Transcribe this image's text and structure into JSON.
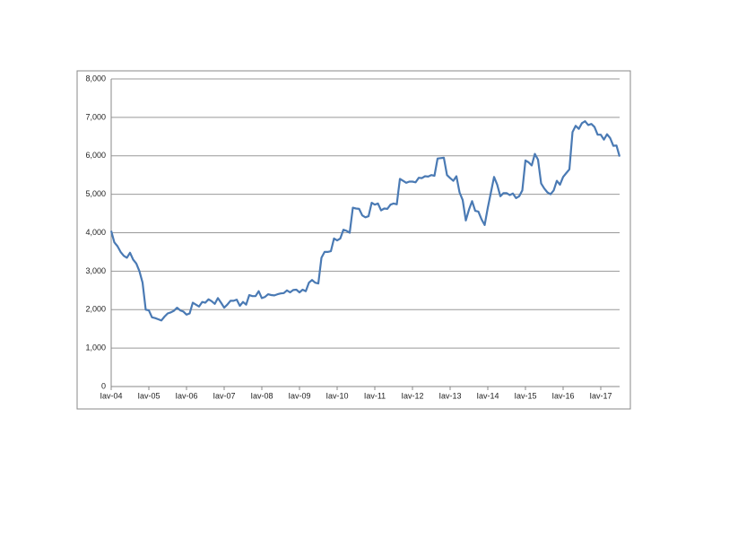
{
  "chart_data": {
    "type": "line",
    "categories": [
      "Iav-04",
      null,
      null,
      null,
      null,
      null,
      null,
      null,
      null,
      null,
      null,
      null,
      "Iav-05",
      null,
      null,
      null,
      null,
      null,
      null,
      null,
      null,
      null,
      null,
      null,
      "Iav-06",
      null,
      null,
      null,
      null,
      null,
      null,
      null,
      null,
      null,
      null,
      null,
      "Iav-07",
      null,
      null,
      null,
      null,
      null,
      null,
      null,
      null,
      null,
      null,
      null,
      "Iav-08",
      null,
      null,
      null,
      null,
      null,
      null,
      null,
      null,
      null,
      null,
      null,
      "Iav-09",
      null,
      null,
      null,
      null,
      null,
      null,
      null,
      null,
      null,
      null,
      null,
      "Iav-10",
      null,
      null,
      null,
      null,
      null,
      null,
      null,
      null,
      null,
      null,
      null,
      "Iav-11",
      null,
      null,
      null,
      null,
      null,
      null,
      null,
      null,
      null,
      null,
      null,
      "Iav-12",
      null,
      null,
      null,
      null,
      null,
      null,
      null,
      null,
      null,
      null,
      null,
      "Iav-13",
      null,
      null,
      null,
      null,
      null,
      null,
      null,
      null,
      null,
      null,
      null,
      "Iav-14",
      null,
      null,
      null,
      null,
      null,
      null,
      null,
      null,
      null,
      null,
      null,
      "Iav-15",
      null,
      null,
      null,
      null,
      null,
      null,
      null,
      null,
      null,
      null,
      null,
      "Iav-16",
      null,
      null,
      null,
      null,
      null,
      null,
      null,
      null,
      null,
      null,
      null,
      "Iav-17",
      null,
      null,
      null,
      null,
      null,
      null
    ],
    "series": [
      {
        "color": "#4a7ab4",
        "values": [
          4050,
          3750,
          3650,
          3500,
          3400,
          3350,
          3480,
          3300,
          3200,
          3000,
          2700,
          2000,
          1980,
          1800,
          1780,
          1750,
          1720,
          1820,
          1900,
          1930,
          1970,
          2050,
          1980,
          1950,
          1870,
          1900,
          2180,
          2130,
          2080,
          2200,
          2180,
          2270,
          2220,
          2150,
          2300,
          2180,
          2050,
          2130,
          2230,
          2230,
          2260,
          2100,
          2200,
          2130,
          2380,
          2350,
          2350,
          2480,
          2300,
          2330,
          2400,
          2380,
          2370,
          2400,
          2420,
          2430,
          2500,
          2450,
          2510,
          2520,
          2450,
          2520,
          2480,
          2700,
          2770,
          2700,
          2680,
          3350,
          3500,
          3500,
          3520,
          3850,
          3800,
          3850,
          4080,
          4050,
          4000,
          4650,
          4630,
          4620,
          4450,
          4400,
          4430,
          4780,
          4730,
          4760,
          4580,
          4630,
          4620,
          4730,
          4760,
          4740,
          5400,
          5350,
          5300,
          5330,
          5330,
          5310,
          5430,
          5420,
          5470,
          5460,
          5500,
          5480,
          5930,
          5940,
          5950,
          5500,
          5420,
          5350,
          5470,
          5050,
          4850,
          4320,
          4600,
          4820,
          4570,
          4550,
          4350,
          4200,
          4650,
          5050,
          5450,
          5250,
          4950,
          5030,
          5030,
          4980,
          5020,
          4900,
          4950,
          5100,
          5880,
          5830,
          5750,
          6050,
          5900,
          5280,
          5150,
          5050,
          5000,
          5100,
          5350,
          5250,
          5450,
          5550,
          5650,
          6620,
          6780,
          6700,
          6850,
          6900,
          6800,
          6830,
          6750,
          6550,
          6550,
          6420,
          6560,
          6460,
          6260,
          6270,
          5980
        ]
      }
    ],
    "ylim": [
      0,
      8000
    ],
    "yticks": [
      0,
      {
        "value": 1000,
        "label": "1,000"
      },
      {
        "value": 2000,
        "label": "2,000"
      },
      {
        "value": 3000,
        "label": "3,000"
      },
      {
        "value": 4000,
        "label": "4,000"
      },
      {
        "value": 5000,
        "label": "5,000"
      },
      {
        "value": 6000,
        "label": "6,000"
      },
      {
        "value": 7000,
        "label": "7,000"
      },
      {
        "value": 8000,
        "label": "8,000"
      }
    ],
    "grid": true
  }
}
